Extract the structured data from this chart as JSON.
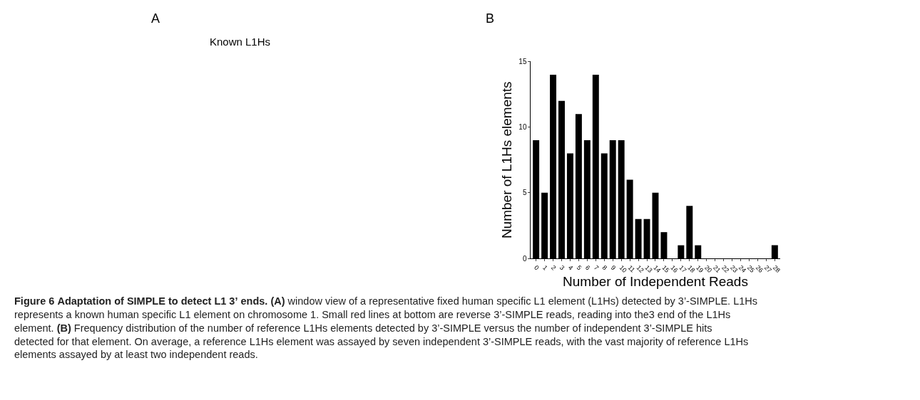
{
  "chart_data": {
    "type": "bar",
    "title": "Figure 6 Adaptation of SIMPLE to detect L1 3’ ends.",
    "xlabel": "Number of Independent Reads",
    "ylabel": "Number of L1Hs elements",
    "categories": [
      "0",
      "1",
      "2",
      "3",
      "4",
      "5",
      "6",
      "7",
      "8",
      "9",
      "10",
      "11",
      "12",
      "13",
      "14",
      "15",
      "16",
      "17",
      "18",
      "19",
      "20",
      "21",
      "22",
      "23",
      "24",
      "25",
      "26",
      "27",
      "28"
    ],
    "values": [
      9,
      5,
      14,
      12,
      8,
      11,
      9,
      14,
      8,
      9,
      9,
      6,
      3,
      3,
      5,
      2,
      0,
      1,
      4,
      1,
      0,
      0,
      0,
      0,
      0,
      0,
      0,
      0,
      1
    ],
    "color": "#000000",
    "ylim": [
      0,
      15
    ],
    "yticks": [
      0,
      5,
      10,
      15
    ],
    "annotations": [
      "A",
      "B",
      "Known L1Hs",
      "(A) window view of a representative fixed human specific L1 element (L1Hs) detected by 3’-SIMPLE. L1Hs represents a known human specific L1 element on chromosome 1. Small red lines at bottom are reverse 3’-SIMPLE reads, reading into the3 end of the L1Hs element. (B) Frequency distribution of the number of reference L1Hs elements detected by 3’-SIMPLE versus the number of independent 3’-SIMPLE hits detected for that element. On average, a reference L1Hs element was assayed by seven independent 3’-SIMPLE reads, with the vast majority of reference L1Hs elements assayed by at least two independent reads."
    ]
  }
}
